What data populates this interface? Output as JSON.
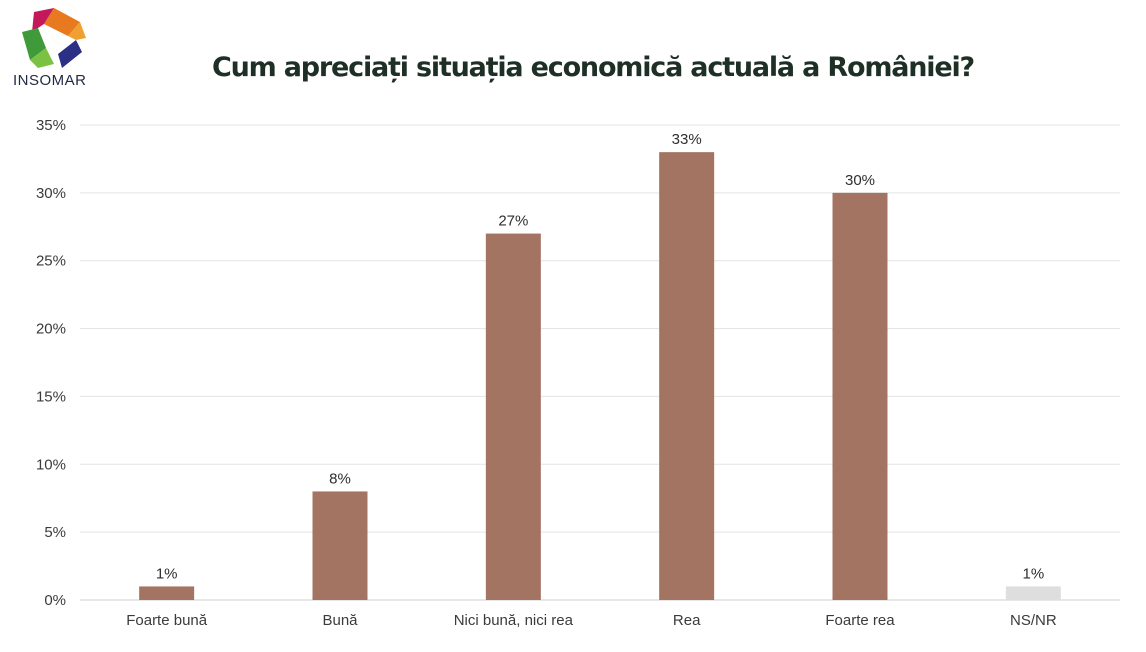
{
  "brand": {
    "name": "INSOMAR",
    "logo_icon": "insomar-logo-icon"
  },
  "chart_data": {
    "type": "bar",
    "title": "Cum apreciați situația economică actuală a României?",
    "xlabel": "",
    "ylabel": "",
    "categories": [
      "Foarte bună",
      "Bună",
      "Nici bună, nici rea",
      "Rea",
      "Foarte rea",
      "NS/NR"
    ],
    "values": [
      1,
      8,
      27,
      33,
      30,
      1
    ],
    "data_labels": [
      "1%",
      "8%",
      "27%",
      "33%",
      "30%",
      "1%"
    ],
    "ylim": [
      0,
      35
    ],
    "yticks": [
      "0%",
      "5%",
      "10%",
      "15%",
      "20%",
      "25%",
      "30%",
      "35%"
    ],
    "grid": true,
    "legend": "none",
    "bar_colors": [
      "#a47462",
      "#a47462",
      "#a47462",
      "#a47462",
      "#a47462",
      "#dedede"
    ],
    "colors": {
      "bar": "#a47462",
      "bar_other": "#dedede",
      "grid": "#e3e3e3",
      "title": "#1e3026"
    }
  }
}
